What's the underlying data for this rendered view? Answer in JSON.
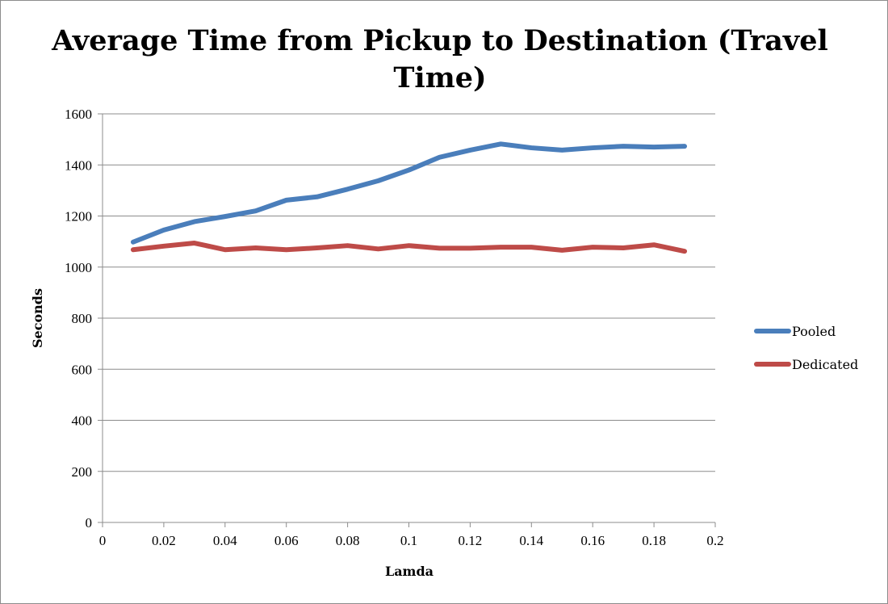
{
  "chart_data": {
    "type": "line",
    "title": "Average Time from Pickup to Destination (Travel Time)",
    "xlabel": "Lamda",
    "ylabel": "Seconds",
    "xlim": [
      0,
      0.2
    ],
    "ylim": [
      0,
      1600
    ],
    "x_ticks": [
      "0",
      "0.02",
      "0.04",
      "0.06",
      "0.08",
      "0.1",
      "0.12",
      "0.14",
      "0.16",
      "0.18",
      "0.2"
    ],
    "y_ticks": [
      "0",
      "200",
      "400",
      "600",
      "800",
      "1000",
      "1200",
      "1400",
      "1600"
    ],
    "grid": "horizontal",
    "legend_position": "right",
    "x": [
      0.01,
      0.02,
      0.03,
      0.04,
      0.05,
      0.06,
      0.07,
      0.08,
      0.09,
      0.1,
      0.11,
      0.12,
      0.13,
      0.14,
      0.15,
      0.16,
      0.17,
      0.18,
      0.19
    ],
    "series": [
      {
        "name": "Pooled",
        "color": "#4a7ebb",
        "values": [
          1098,
          1145,
          1178,
          1198,
          1220,
          1262,
          1275,
          1305,
          1338,
          1380,
          1430,
          1458,
          1482,
          1467,
          1458,
          1467,
          1473,
          1470,
          1473
        ]
      },
      {
        "name": "Dedicated",
        "color": "#be4b48",
        "values": [
          1068,
          1082,
          1094,
          1068,
          1075,
          1068,
          1075,
          1084,
          1071,
          1084,
          1074,
          1074,
          1078,
          1078,
          1066,
          1078,
          1075,
          1087,
          1062
        ]
      }
    ]
  }
}
